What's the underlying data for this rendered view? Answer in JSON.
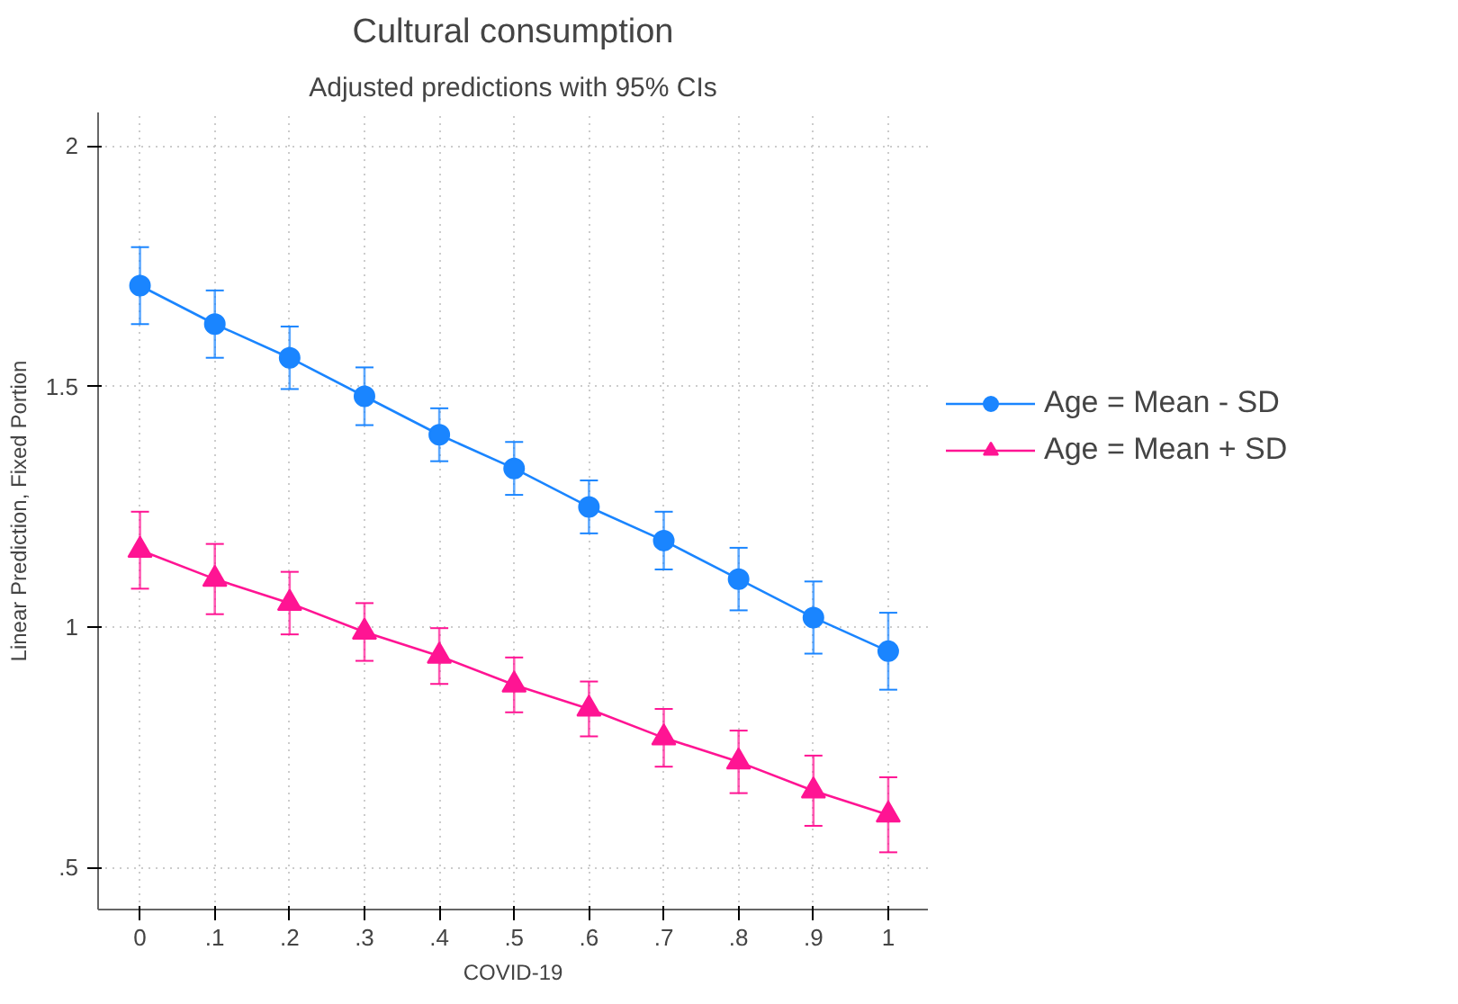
{
  "chart_data": {
    "type": "line",
    "title": "Cultural consumption",
    "subtitle": "Adjusted predictions with 95% CIs",
    "xlabel": "COVID-19",
    "ylabel": "Linear Prediction, Fixed Portion",
    "x": [
      0,
      0.1,
      0.2,
      0.3,
      0.4,
      0.5,
      0.6,
      0.7,
      0.8,
      0.9,
      1
    ],
    "series": [
      {
        "name": "Age = Mean - SD",
        "color": "#1a85ff",
        "marker": "circle",
        "values": [
          1.71,
          1.63,
          1.56,
          1.48,
          1.4,
          1.33,
          1.25,
          1.18,
          1.1,
          1.02,
          0.95
        ],
        "errors": [
          0.08,
          0.07,
          0.065,
          0.06,
          0.055,
          0.055,
          0.055,
          0.06,
          0.065,
          0.075,
          0.08
        ]
      },
      {
        "name": "Age = Mean + SD",
        "color": "#ff1493",
        "marker": "triangle",
        "values": [
          1.16,
          1.1,
          1.05,
          0.99,
          0.94,
          0.88,
          0.83,
          0.77,
          0.72,
          0.66,
          0.61
        ],
        "errors": [
          0.08,
          0.073,
          0.065,
          0.06,
          0.058,
          0.057,
          0.057,
          0.06,
          0.065,
          0.073,
          0.078
        ]
      }
    ],
    "xlim": [
      -0.056,
      1.053
    ],
    "ylim": [
      0.413,
      2.07
    ],
    "xticks": [
      0,
      {
        "value": 0.1,
        "label": ".1"
      },
      {
        "value": 0.2,
        "label": ".2"
      },
      {
        "value": 0.3,
        "label": ".3"
      },
      {
        "value": 0.4,
        "label": ".4"
      },
      {
        "value": 0.5,
        "label": ".5"
      },
      {
        "value": 0.6,
        "label": ".6"
      },
      {
        "value": 0.7,
        "label": ".7"
      },
      {
        "value": 0.8,
        "label": ".8"
      },
      {
        "value": 0.9,
        "label": ".9"
      },
      1
    ],
    "yticks": [
      {
        "value": 0.5,
        "label": ".5"
      },
      1,
      1.5,
      2
    ],
    "grid": true,
    "legend": "right",
    "line_style": "solid"
  }
}
